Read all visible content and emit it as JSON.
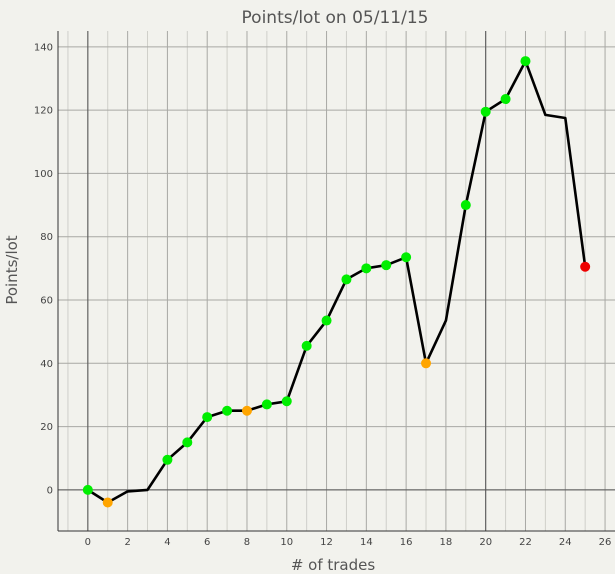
{
  "chart_data": {
    "type": "line",
    "title": "Points/lot on 05/11/15",
    "xlabel": "# of trades",
    "ylabel": "Points/lot",
    "xlim": [
      -1.5,
      26.5
    ],
    "ylim": [
      -13,
      145
    ],
    "xticks": [
      0,
      2,
      4,
      6,
      8,
      10,
      12,
      14,
      16,
      18,
      20,
      22,
      24,
      26
    ],
    "yticks": [
      0,
      20,
      40,
      60,
      80,
      100,
      120,
      140
    ],
    "xtick_labels": [
      "0",
      "2",
      "4",
      "6",
      "8",
      "10",
      "12",
      "14",
      "16",
      "18",
      "20",
      "22",
      "24",
      "26"
    ],
    "ytick_labels": [
      "0",
      "20",
      "40",
      "60",
      "80",
      "100",
      "120",
      "140"
    ],
    "grid": true,
    "line_color": "#000000",
    "series": [
      {
        "x": [
          0,
          1,
          2,
          3,
          4,
          5,
          6,
          7,
          8,
          9,
          10,
          11,
          12,
          13,
          14,
          15,
          16,
          17,
          18,
          19,
          20,
          21,
          22,
          23,
          24,
          25
        ],
        "y": [
          0,
          -4,
          -0.5,
          0,
          9.5,
          15,
          23,
          25,
          25,
          27,
          28,
          45.5,
          53.5,
          66.5,
          70,
          71,
          73.5,
          40,
          53.5,
          90,
          119.5,
          123.5,
          135.5,
          118.5,
          117.5,
          70.5
        ]
      }
    ],
    "markers": [
      {
        "x": 0,
        "y": 0,
        "color": "#00ee00"
      },
      {
        "x": 1,
        "y": -4,
        "color": "#ffa500"
      },
      {
        "x": 4,
        "y": 9.5,
        "color": "#00ee00"
      },
      {
        "x": 5,
        "y": 15,
        "color": "#00ee00"
      },
      {
        "x": 6,
        "y": 23,
        "color": "#00ee00"
      },
      {
        "x": 7,
        "y": 25,
        "color": "#00ee00"
      },
      {
        "x": 8,
        "y": 25,
        "color": "#ffa500"
      },
      {
        "x": 9,
        "y": 27,
        "color": "#00ee00"
      },
      {
        "x": 10,
        "y": 28,
        "color": "#00ee00"
      },
      {
        "x": 11,
        "y": 45.5,
        "color": "#00ee00"
      },
      {
        "x": 12,
        "y": 53.5,
        "color": "#00ee00"
      },
      {
        "x": 13,
        "y": 66.5,
        "color": "#00ee00"
      },
      {
        "x": 14,
        "y": 70,
        "color": "#00ee00"
      },
      {
        "x": 15,
        "y": 71,
        "color": "#00ee00"
      },
      {
        "x": 16,
        "y": 73.5,
        "color": "#00ee00"
      },
      {
        "x": 17,
        "y": 40,
        "color": "#ffa500"
      },
      {
        "x": 19,
        "y": 90,
        "color": "#00ee00"
      },
      {
        "x": 20,
        "y": 119.5,
        "color": "#00ee00"
      },
      {
        "x": 21,
        "y": 123.5,
        "color": "#00ee00"
      },
      {
        "x": 22,
        "y": 135.5,
        "color": "#00ee00"
      },
      {
        "x": 25,
        "y": 70.5,
        "color": "#ee0000"
      }
    ]
  }
}
